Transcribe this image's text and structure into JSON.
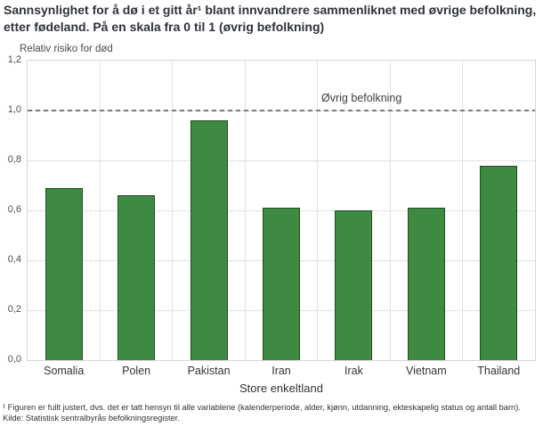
{
  "colors": {
    "bar": "#3e8a43",
    "grid": "#e2e2e2",
    "reference_line": "#7b7b7b",
    "text": "#333333"
  },
  "chart_data": {
    "type": "bar",
    "title": "Sannsynlighet for å dø i et gitt år¹ blant innvandrere sammenliknet med øvrige befolkning, etter fødeland. På en skala fra 0 til 1 (øvrig befolkning)",
    "y_axis_title": "Relativ risiko for død",
    "x_axis_title": "Store enkeltland",
    "categories": [
      "Somalia",
      "Polen",
      "Pakistan",
      "Iran",
      "Irak",
      "Vietnam",
      "Thailand"
    ],
    "values": [
      0.69,
      0.66,
      0.96,
      0.61,
      0.6,
      0.61,
      0.78
    ],
    "ylim": [
      0,
      1.2
    ],
    "yticks": [
      {
        "value": 0.0,
        "label": "0,0"
      },
      {
        "value": 0.2,
        "label": "0,2"
      },
      {
        "value": 0.4,
        "label": "0,4"
      },
      {
        "value": 0.6,
        "label": "0,6"
      },
      {
        "value": 0.8,
        "label": "0,8"
      },
      {
        "value": 1.0,
        "label": "1,0"
      },
      {
        "value": 1.2,
        "label": "1,2"
      }
    ],
    "reference_line": {
      "value": 1.0,
      "label": "Øvrig befolkning"
    },
    "grid": true,
    "legend": "none"
  },
  "footnotes": [
    "¹ Figuren er fullt justert, dvs. det er tatt hensyn til alle variablene (kalenderperiode, alder, kjønn, utdanning, ekteskapelig status og antall barn).",
    "Kilde: Statistisk sentralbyrås befolkningsregister."
  ]
}
